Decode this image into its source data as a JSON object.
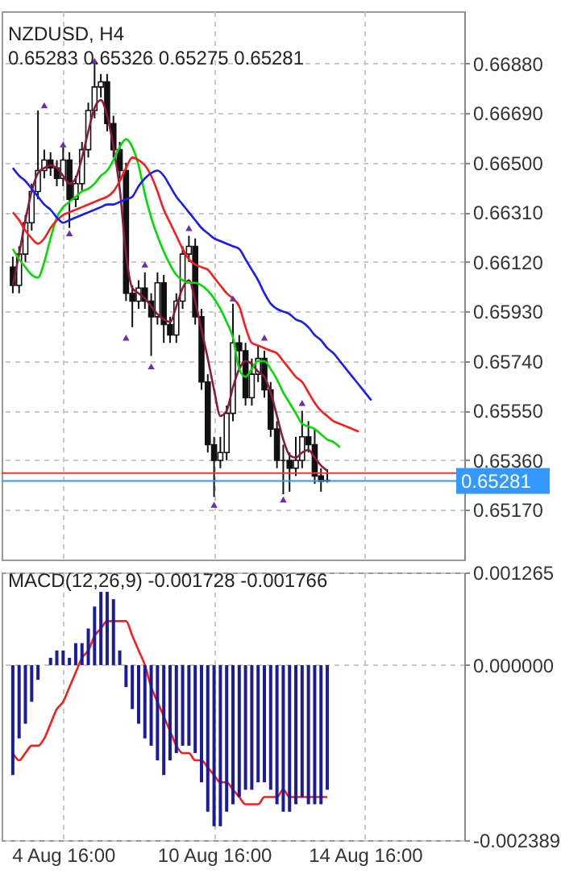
{
  "chart_data": [
    {
      "type": "candlestick",
      "title": "NZDUSD, H4",
      "subtitle": "0.65283 0.65326 0.65275 0.65281",
      "categories": [
        null,
        null,
        null,
        null,
        null,
        null,
        null,
        null,
        null,
        null,
        null,
        null,
        null,
        null,
        null,
        null,
        null,
        null,
        null,
        null,
        null,
        null,
        null,
        null,
        null,
        null,
        null,
        null,
        null,
        null,
        null,
        null,
        null,
        null,
        null,
        null,
        null,
        null,
        null,
        null,
        null,
        null,
        null,
        null,
        null,
        null,
        null,
        null,
        null,
        null,
        null,
        null,
        null,
        null,
        null,
        null,
        null,
        null,
        null,
        null,
        null,
        null,
        null,
        null,
        null,
        null,
        null,
        null,
        null,
        null,
        null
      ],
      "ohlc": [
        [
          0.661,
          0.6614,
          0.66,
          0.6603
        ],
        [
          0.6603,
          0.6618,
          0.66,
          0.6615
        ],
        [
          0.6615,
          0.663,
          0.6612,
          0.6627
        ],
        [
          0.6627,
          0.6642,
          0.6624,
          0.6639
        ],
        [
          0.6639,
          0.667,
          0.6636,
          0.6647
        ],
        [
          0.6647,
          0.6655,
          0.6644,
          0.6651
        ],
        [
          0.6651,
          0.6654,
          0.6645,
          0.6648
        ],
        [
          0.6648,
          0.6651,
          0.6641,
          0.6644
        ],
        [
          0.6644,
          0.6656,
          0.6641,
          0.6651
        ],
        [
          0.6651,
          0.6654,
          0.6625,
          0.6636
        ],
        [
          0.6636,
          0.6645,
          0.6633,
          0.6642
        ],
        [
          0.6642,
          0.6658,
          0.6639,
          0.6655
        ],
        [
          0.6655,
          0.6673,
          0.6652,
          0.667
        ],
        [
          0.667,
          0.6688,
          0.6667,
          0.6679
        ],
        [
          0.6679,
          0.6684,
          0.6675,
          0.6681
        ],
        [
          0.6681,
          0.6684,
          0.6662,
          0.6665
        ],
        [
          0.6665,
          0.6668,
          0.6652,
          0.6655
        ],
        [
          0.6655,
          0.6658,
          0.6644,
          0.6647
        ],
        [
          0.6647,
          0.665,
          0.6597,
          0.66
        ],
        [
          0.66,
          0.6603,
          0.6587,
          0.6597
        ],
        [
          0.6597,
          0.6605,
          0.6594,
          0.6602
        ],
        [
          0.6602,
          0.6608,
          0.6594,
          0.6597
        ],
        [
          0.6597,
          0.66,
          0.6576,
          0.6591
        ],
        [
          0.6591,
          0.6608,
          0.6588,
          0.6604
        ],
        [
          0.6604,
          0.6607,
          0.6581,
          0.6588
        ],
        [
          0.6588,
          0.6591,
          0.6581,
          0.6584
        ],
        [
          0.6584,
          0.66,
          0.6581,
          0.6597
        ],
        [
          0.6597,
          0.6618,
          0.6594,
          0.6615
        ],
        [
          0.6615,
          0.6622,
          0.6612,
          0.6618
        ],
        [
          0.6618,
          0.6621,
          0.6588,
          0.6591
        ],
        [
          0.6591,
          0.6594,
          0.6563,
          0.6566
        ],
        [
          0.6566,
          0.6569,
          0.6539,
          0.6542
        ],
        [
          0.6542,
          0.6545,
          0.6522,
          0.6536
        ],
        [
          0.6536,
          0.6545,
          0.6533,
          0.6539
        ],
        [
          0.6539,
          0.6557,
          0.6536,
          0.6554
        ],
        [
          0.6554,
          0.6596,
          0.6551,
          0.6581
        ],
        [
          0.6581,
          0.6584,
          0.6572,
          0.6578
        ],
        [
          0.6578,
          0.6581,
          0.6557,
          0.656
        ],
        [
          0.656,
          0.6575,
          0.6557,
          0.6569
        ],
        [
          0.6569,
          0.658,
          0.6566,
          0.6575
        ],
        [
          0.6575,
          0.6578,
          0.656,
          0.6563
        ],
        [
          0.6563,
          0.6566,
          0.6545,
          0.6548
        ],
        [
          0.6548,
          0.6551,
          0.6533,
          0.6536
        ],
        [
          0.6536,
          0.6542,
          0.6523,
          0.6536
        ],
        [
          0.6536,
          0.6539,
          0.6524,
          0.6533
        ],
        [
          0.6533,
          0.6545,
          0.653,
          0.6536
        ],
        [
          0.6536,
          0.6555,
          0.6533,
          0.6545
        ],
        [
          0.6545,
          0.6551,
          0.6539,
          0.6542
        ],
        [
          0.6542,
          0.6548,
          0.6527,
          0.653
        ],
        [
          0.653,
          0.6533,
          0.6524,
          0.6528
        ],
        [
          0.65283,
          0.65326,
          0.65275,
          0.65281
        ],
        null,
        null,
        null,
        null,
        null,
        null,
        null,
        null,
        null,
        null,
        null,
        null,
        null,
        null,
        null,
        null,
        null,
        null,
        null,
        null
      ],
      "series": [
        {
          "type": "line",
          "color": "#8b1a3a",
          "values": [
            0.6603,
            0.6615,
            0.6628,
            0.6639,
            0.6646,
            0.6648,
            0.6649,
            0.6648,
            0.6645,
            0.6642,
            0.6644,
            0.6652,
            0.6662,
            0.6671,
            0.6674,
            0.6668,
            0.6656,
            0.664,
            0.6615,
            0.6602,
            0.66,
            0.6598,
            0.6595,
            0.6592,
            0.659,
            0.6589,
            0.6595,
            0.6602,
            0.6605,
            0.6597,
            0.6586,
            0.6575,
            0.6563,
            0.6553,
            0.6555,
            0.6564,
            0.6571,
            0.6574,
            0.6573,
            0.657,
            0.6568,
            0.6562,
            0.6553,
            0.6544,
            0.6538,
            0.6537,
            0.6539,
            0.654,
            0.6537,
            0.6534,
            0.6532,
            null,
            null,
            null,
            null,
            null,
            null,
            null,
            null,
            null,
            null,
            null,
            null,
            null,
            null,
            null,
            null,
            null,
            null,
            null,
            null
          ]
        },
        {
          "type": "line",
          "color": "#00dd00",
          "values": [
            0.6617,
            0.6613,
            0.661,
            0.6607,
            0.6606,
            0.6612,
            0.6621,
            0.6629,
            0.6633,
            0.6635,
            0.6637,
            0.6639,
            0.664,
            0.6642,
            0.6645,
            0.6647,
            0.6651,
            0.6656,
            0.6659,
            0.6656,
            0.6649,
            0.6638,
            0.6629,
            0.6622,
            0.6616,
            0.6611,
            0.6607,
            0.6605,
            0.6604,
            0.6604,
            0.6603,
            0.6601,
            0.6598,
            0.6594,
            0.6589,
            0.6583,
            0.6571,
            0.6568,
            0.6571,
            0.6574,
            0.6574,
            0.6571,
            0.6567,
            0.6562,
            0.6558,
            0.6554,
            0.655,
            0.6549,
            0.6548,
            0.6546,
            0.6544,
            0.6543,
            0.6541,
            null,
            null,
            null,
            null,
            null,
            null,
            null,
            null,
            null,
            null,
            null,
            null,
            null,
            null,
            null,
            null,
            null,
            null
          ]
        },
        {
          "type": "line",
          "color": "#ff1a1a",
          "values": [
            0.6631,
            0.6628,
            0.6624,
            0.6621,
            0.6619,
            0.6621,
            0.6625,
            0.6628,
            0.663,
            0.6631,
            0.6632,
            0.6633,
            0.6634,
            0.6635,
            0.6636,
            0.6637,
            0.6639,
            0.6643,
            0.6648,
            0.6652,
            0.6651,
            0.6649,
            0.6645,
            0.6639,
            0.6632,
            0.6627,
            0.6622,
            0.6617,
            0.6613,
            0.6611,
            0.661,
            0.6609,
            0.6606,
            0.6603,
            0.66,
            0.6598,
            0.6595,
            0.6587,
            0.6581,
            0.658,
            0.6579,
            0.6578,
            0.6577,
            0.6574,
            0.6571,
            0.6568,
            0.6566,
            0.6562,
            0.6558,
            0.6555,
            0.6553,
            0.6551,
            0.655,
            0.6549,
            0.6548,
            0.6547,
            null,
            null,
            null,
            null,
            null,
            null,
            null,
            null,
            null,
            null,
            null,
            null,
            null,
            null,
            null
          ]
        },
        {
          "type": "line",
          "color": "#1a1aff",
          "values": [
            0.6648,
            0.6645,
            0.6643,
            0.664,
            0.6637,
            0.6634,
            0.6632,
            0.6629,
            0.6627,
            0.6628,
            0.6629,
            0.663,
            0.6631,
            0.6632,
            0.6633,
            0.6634,
            0.6634,
            0.6635,
            0.6636,
            0.6637,
            0.6641,
            0.6644,
            0.6646,
            0.6647,
            0.6645,
            0.6641,
            0.6637,
            0.6634,
            0.6631,
            0.6628,
            0.6625,
            0.6623,
            0.6621,
            0.662,
            0.6619,
            0.6618,
            0.6617,
            0.6613,
            0.6609,
            0.6605,
            0.66,
            0.6596,
            0.6594,
            0.6593,
            0.6592,
            0.659,
            0.6589,
            0.6587,
            0.6584,
            0.6582,
            0.6579,
            0.6577,
            0.6574,
            0.6571,
            0.6568,
            0.6565,
            0.6562,
            0.6559,
            null,
            null,
            null,
            null,
            null,
            null,
            null,
            null,
            null,
            null,
            null,
            null,
            null
          ]
        },
        {
          "type": "scatter",
          "marker": "triangle",
          "color": "#6a2fb0",
          "values": [
            null,
            null,
            null,
            null,
            null,
            0.6672,
            null,
            null,
            0.6657,
            null,
            null,
            null,
            null,
            0.6689,
            null,
            null,
            null,
            null,
            null,
            null,
            null,
            0.6611,
            null,
            null,
            null,
            null,
            null,
            null,
            0.6625,
            null,
            null,
            null,
            null,
            null,
            null,
            0.6598,
            null,
            null,
            null,
            null,
            0.6583,
            null,
            null,
            null,
            null,
            null,
            0.6558,
            null,
            null,
            null,
            null,
            null,
            null,
            null,
            null,
            null,
            null,
            null,
            null,
            null,
            null,
            null,
            null,
            null,
            null,
            null,
            null,
            null,
            null,
            null,
            null
          ]
        },
        {
          "type": "scatter",
          "marker": "triangle",
          "color": "#6a2fb0",
          "values": [
            null,
            null,
            null,
            null,
            null,
            null,
            null,
            null,
            null,
            0.6623,
            null,
            null,
            null,
            null,
            null,
            null,
            null,
            null,
            0.6583,
            null,
            null,
            null,
            0.6572,
            null,
            null,
            null,
            null,
            null,
            null,
            null,
            null,
            null,
            0.6519,
            null,
            null,
            null,
            null,
            null,
            null,
            null,
            null,
            null,
            null,
            0.6521,
            null,
            null,
            null,
            null,
            null,
            null,
            null,
            null,
            null,
            null,
            null,
            null,
            null,
            null,
            null,
            null,
            null,
            null,
            null,
            null,
            null,
            null,
            null,
            null,
            null,
            null,
            null
          ]
        }
      ],
      "ylim": [
        0.6498,
        0.6708
      ],
      "yticks": [
        {
          "value": 0.6517,
          "label": "0.65170"
        },
        {
          "value": 0.6536,
          "label": "0.65360"
        },
        {
          "value": 0.6555,
          "label": "0.65550"
        },
        {
          "value": 0.6574,
          "label": "0.65740"
        },
        {
          "value": 0.6593,
          "label": "0.65930"
        },
        {
          "value": 0.6612,
          "label": "0.66120"
        },
        {
          "value": 0.6631,
          "label": "0.66310"
        },
        {
          "value": 0.665,
          "label": "0.66500"
        },
        {
          "value": 0.6669,
          "label": "0.66690"
        },
        {
          "value": 0.6688,
          "label": "0.66880"
        }
      ],
      "grid": true,
      "tick_labels": "y",
      "ref_lines": [
        {
          "axis": "y",
          "value": 0.65311,
          "color": "#ff3030",
          "line_style": "solid"
        },
        {
          "axis": "y",
          "value": 0.65281,
          "label": "0.65281",
          "color": "#3399ff",
          "line_style": "solid"
        }
      ]
    },
    {
      "type": "bar",
      "title": "MACD(12,26,9) -0.001728 -0.001766",
      "categories": [
        null,
        null,
        null,
        null,
        null,
        null,
        null,
        null,
        "4 Aug 16:00",
        null,
        null,
        null,
        null,
        null,
        null,
        null,
        null,
        null,
        null,
        null,
        null,
        null,
        null,
        null,
        null,
        null,
        null,
        null,
        null,
        null,
        null,
        null,
        "10 Aug 16:00",
        null,
        null,
        null,
        null,
        null,
        null,
        null,
        null,
        null,
        null,
        null,
        null,
        null,
        null,
        null,
        null,
        null,
        null,
        null,
        null,
        null,
        null,
        null,
        "14 Aug 16:00",
        null,
        null,
        null,
        null,
        null,
        null,
        null,
        null,
        null,
        null,
        null,
        null,
        null,
        null
      ],
      "series": [
        {
          "type": "bar",
          "color": "#1c1c99",
          "values": [
            -0.0015,
            -0.001,
            -0.0008,
            -0.0005,
            -0.0002,
            0,
            0.0001,
            0.0002,
            0.0002,
            0.0001,
            0.0003,
            0.0003,
            0.0005,
            0.0008,
            0.001,
            0.001,
            0.0009,
            0.0002,
            -0.0003,
            -0.0006,
            -0.0008,
            -0.001,
            -0.0011,
            -0.0013,
            -0.0015,
            -0.0013,
            -0.0012,
            -0.0011,
            -0.0011,
            -0.0012,
            -0.0016,
            -0.002,
            -0.0022,
            -0.0022,
            -0.002,
            -0.0019,
            -0.0018,
            -0.0017,
            -0.0017,
            -0.0016,
            -0.0016,
            -0.0017,
            -0.0019,
            -0.002,
            -0.002,
            -0.0019,
            -0.0018,
            -0.0019,
            -0.0019,
            -0.0019,
            -0.0017,
            null,
            null,
            null,
            null,
            null,
            null,
            null,
            null,
            null,
            null,
            null,
            null,
            null,
            null,
            null,
            null,
            null,
            null,
            null,
            null
          ]
        },
        {
          "type": "line",
          "color": "#ff1a1a",
          "values": [
            -0.0012,
            -0.0013,
            -0.0012,
            -0.0011,
            -0.0011,
            -0.001,
            -0.0008,
            -0.0006,
            -0.0005,
            -0.0003,
            -0.0001,
            0.0001,
            0.0002,
            0.0004,
            0.0005,
            0.0006,
            0.0006,
            0.0006,
            0.0006,
            0.0004,
            0.0002,
            0.0,
            -0.0003,
            -0.0005,
            -0.0007,
            -0.0009,
            -0.0011,
            -0.0012,
            -0.0012,
            -0.0013,
            -0.0013,
            -0.0014,
            -0.0015,
            -0.0016,
            -0.0016,
            -0.0017,
            -0.0018,
            -0.0019,
            -0.0019,
            -0.0019,
            -0.0018,
            -0.0018,
            -0.0018,
            -0.0017,
            -0.0018,
            -0.0018,
            -0.0018,
            -0.0018,
            -0.0018,
            -0.0018,
            -0.0018,
            null,
            null,
            null,
            null,
            null,
            null,
            null,
            null,
            null,
            null,
            null,
            null,
            null,
            null,
            null,
            null,
            null,
            null,
            null,
            null
          ]
        }
      ],
      "ylim": [
        -0.002389,
        0.001265
      ],
      "yticks": [
        {
          "value": -0.002389,
          "label": "-0.002389"
        },
        {
          "value": 0,
          "label": "0.000000"
        },
        {
          "value": 0.001265,
          "label": "0.001265"
        }
      ],
      "grid": true
    }
  ]
}
